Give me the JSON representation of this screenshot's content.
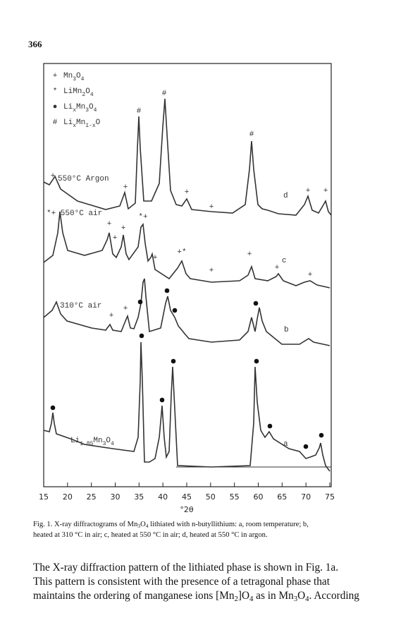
{
  "page_number": "366",
  "figure": {
    "legend": [
      {
        "symbol": "+",
        "formula": [
          "Mn",
          "3",
          "O",
          "4"
        ]
      },
      {
        "symbol": "*",
        "formula": [
          "LiMn",
          "2",
          "O",
          "4"
        ]
      },
      {
        "symbol": "●",
        "formula": [
          "Li",
          "x",
          "Mn",
          "3",
          "O",
          "4"
        ]
      },
      {
        "symbol": "#",
        "formula": [
          "Li",
          "x",
          "Mn",
          "1-x",
          "O"
        ]
      }
    ],
    "curve_labels": [
      "550°C Argon",
      "d",
      "*+ 550°C air",
      "c",
      "310°C air",
      "b",
      [
        "Li",
        "1.85",
        "Mn",
        "3",
        "O",
        "4"
      ],
      "a"
    ],
    "annotations": [
      "#",
      "#",
      "#",
      "+",
      "+",
      "+",
      "+",
      "+",
      "+",
      "+",
      "+",
      "*+",
      "+",
      "+",
      "+*",
      "+",
      "+",
      "+",
      "+",
      "+",
      "+"
    ],
    "x_ticks": [
      "15",
      "20",
      "25",
      "30",
      "35",
      "40",
      "45",
      "50",
      "55",
      "60",
      "65",
      "70",
      "75"
    ],
    "x_label": "°2θ"
  },
  "caption": [
    [
      "Fig. 1. X-ray diffractograms of Mn",
      "3",
      "O",
      "4",
      " lithiated with n-butyllithium: a, room temperature; b,"
    ],
    [
      "heated at 310 °C in air; c, heated at 550 °C in air; d, heated at 550 °C in argon."
    ]
  ],
  "body": [
    [
      "The X-ray diffraction pattern of the lithiated phase is shown in Fig. 1a."
    ],
    [
      "This pattern is consistent with the presence of a tetragonal phase that"
    ],
    [
      "maintains the ordering of manganese ions [Mn",
      "2",
      "]O",
      "4",
      " as in Mn",
      "3",
      "O",
      "4",
      ". According"
    ]
  ]
}
